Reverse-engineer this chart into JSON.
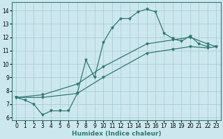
{
  "xlabel": "Humidex (Indice chaleur)",
  "bg_color": "#cce8ee",
  "grid_color": "#aacdd6",
  "line_color": "#2d7a70",
  "xlim": [
    -0.5,
    23.5
  ],
  "ylim": [
    5.8,
    14.6
  ],
  "xticks": [
    0,
    1,
    2,
    3,
    4,
    5,
    6,
    7,
    8,
    9,
    10,
    11,
    12,
    13,
    14,
    15,
    16,
    17,
    18,
    19,
    20,
    21,
    22,
    23
  ],
  "yticks": [
    6,
    7,
    8,
    9,
    10,
    11,
    12,
    13,
    14
  ],
  "line1_x": [
    0,
    1,
    2,
    3,
    4,
    5,
    6,
    7,
    8,
    9,
    10,
    11,
    12,
    13,
    14,
    15,
    16,
    17,
    18,
    19,
    20,
    21,
    22
  ],
  "line1_y": [
    7.5,
    7.3,
    7.0,
    6.2,
    6.5,
    6.5,
    6.5,
    7.8,
    10.3,
    9.0,
    11.6,
    12.7,
    13.4,
    13.4,
    13.9,
    14.1,
    13.9,
    12.3,
    11.9,
    11.7,
    12.1,
    11.5,
    11.3
  ],
  "line2_x": [
    0,
    3,
    7,
    10,
    15,
    18,
    20,
    22,
    23
  ],
  "line2_y": [
    7.5,
    7.5,
    7.8,
    9.0,
    10.8,
    11.1,
    11.3,
    11.2,
    11.3
  ],
  "line3_x": [
    0,
    3,
    7,
    10,
    15,
    18,
    20,
    22,
    23
  ],
  "line3_y": [
    7.5,
    7.7,
    8.5,
    9.8,
    11.5,
    11.8,
    12.0,
    11.5,
    11.3
  ],
  "xlabel_fontsize": 6.5,
  "tick_fontsize": 5.5,
  "lw": 0.9,
  "ms": 2.2
}
